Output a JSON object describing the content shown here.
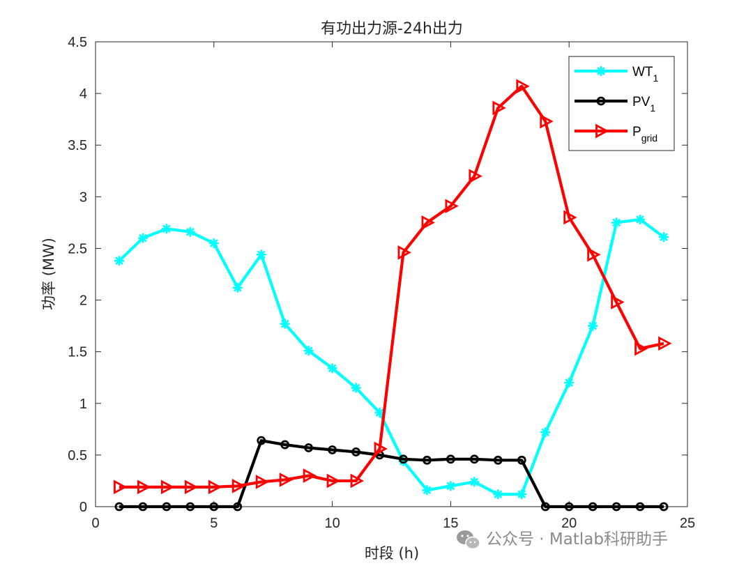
{
  "chart_data": {
    "type": "line",
    "title": "有功出力源-24h出力",
    "xlabel": "时段 (h)",
    "ylabel": "功率 (MW)",
    "xlim": [
      0,
      25
    ],
    "ylim": [
      0,
      4.5
    ],
    "xticks": [
      0,
      5,
      10,
      15,
      20,
      25
    ],
    "yticks": [
      0,
      0.5,
      1,
      1.5,
      2,
      2.5,
      3,
      3.5,
      4,
      4.5
    ],
    "xtick_labels": [
      "0",
      "5",
      "10",
      "15",
      "20",
      "25"
    ],
    "ytick_labels": [
      "0",
      "0.5",
      "1",
      "1.5",
      "2",
      "2.5",
      "3",
      "3.5",
      "4",
      "4.5"
    ],
    "grid": false,
    "legend_position": "top-right",
    "x": [
      1,
      2,
      3,
      4,
      5,
      6,
      7,
      8,
      9,
      10,
      11,
      12,
      13,
      14,
      15,
      16,
      17,
      18,
      19,
      20,
      21,
      22,
      23,
      24
    ],
    "series": [
      {
        "name": "WT",
        "name_sub": "1",
        "color": "#00ffff",
        "marker": "asterisk",
        "values": [
          2.38,
          2.6,
          2.69,
          2.66,
          2.55,
          2.12,
          2.44,
          1.77,
          1.51,
          1.34,
          1.15,
          0.91,
          0.44,
          0.16,
          0.2,
          0.24,
          0.12,
          0.12,
          0.72,
          1.2,
          1.75,
          2.75,
          2.78,
          2.61
        ]
      },
      {
        "name": "PV",
        "name_sub": "1",
        "color": "#000000",
        "marker": "circle",
        "values": [
          0,
          0,
          0,
          0,
          0,
          0,
          0.64,
          0.6,
          0.57,
          0.55,
          0.53,
          0.5,
          0.46,
          0.45,
          0.46,
          0.46,
          0.45,
          0.45,
          0,
          0,
          0,
          0,
          0,
          0
        ]
      },
      {
        "name": "P",
        "name_sub": "grid",
        "color": "#ff0000",
        "marker": "triangle-right",
        "values": [
          0.19,
          0.19,
          0.19,
          0.19,
          0.19,
          0.2,
          0.24,
          0.26,
          0.3,
          0.25,
          0.25,
          0.56,
          2.46,
          2.75,
          2.91,
          3.2,
          3.86,
          4.07,
          3.73,
          2.8,
          2.44,
          1.98,
          1.53,
          1.58
        ]
      }
    ]
  },
  "watermark": {
    "text": "公众号 · Matlab科研助手",
    "icon": "wechat-icon"
  }
}
